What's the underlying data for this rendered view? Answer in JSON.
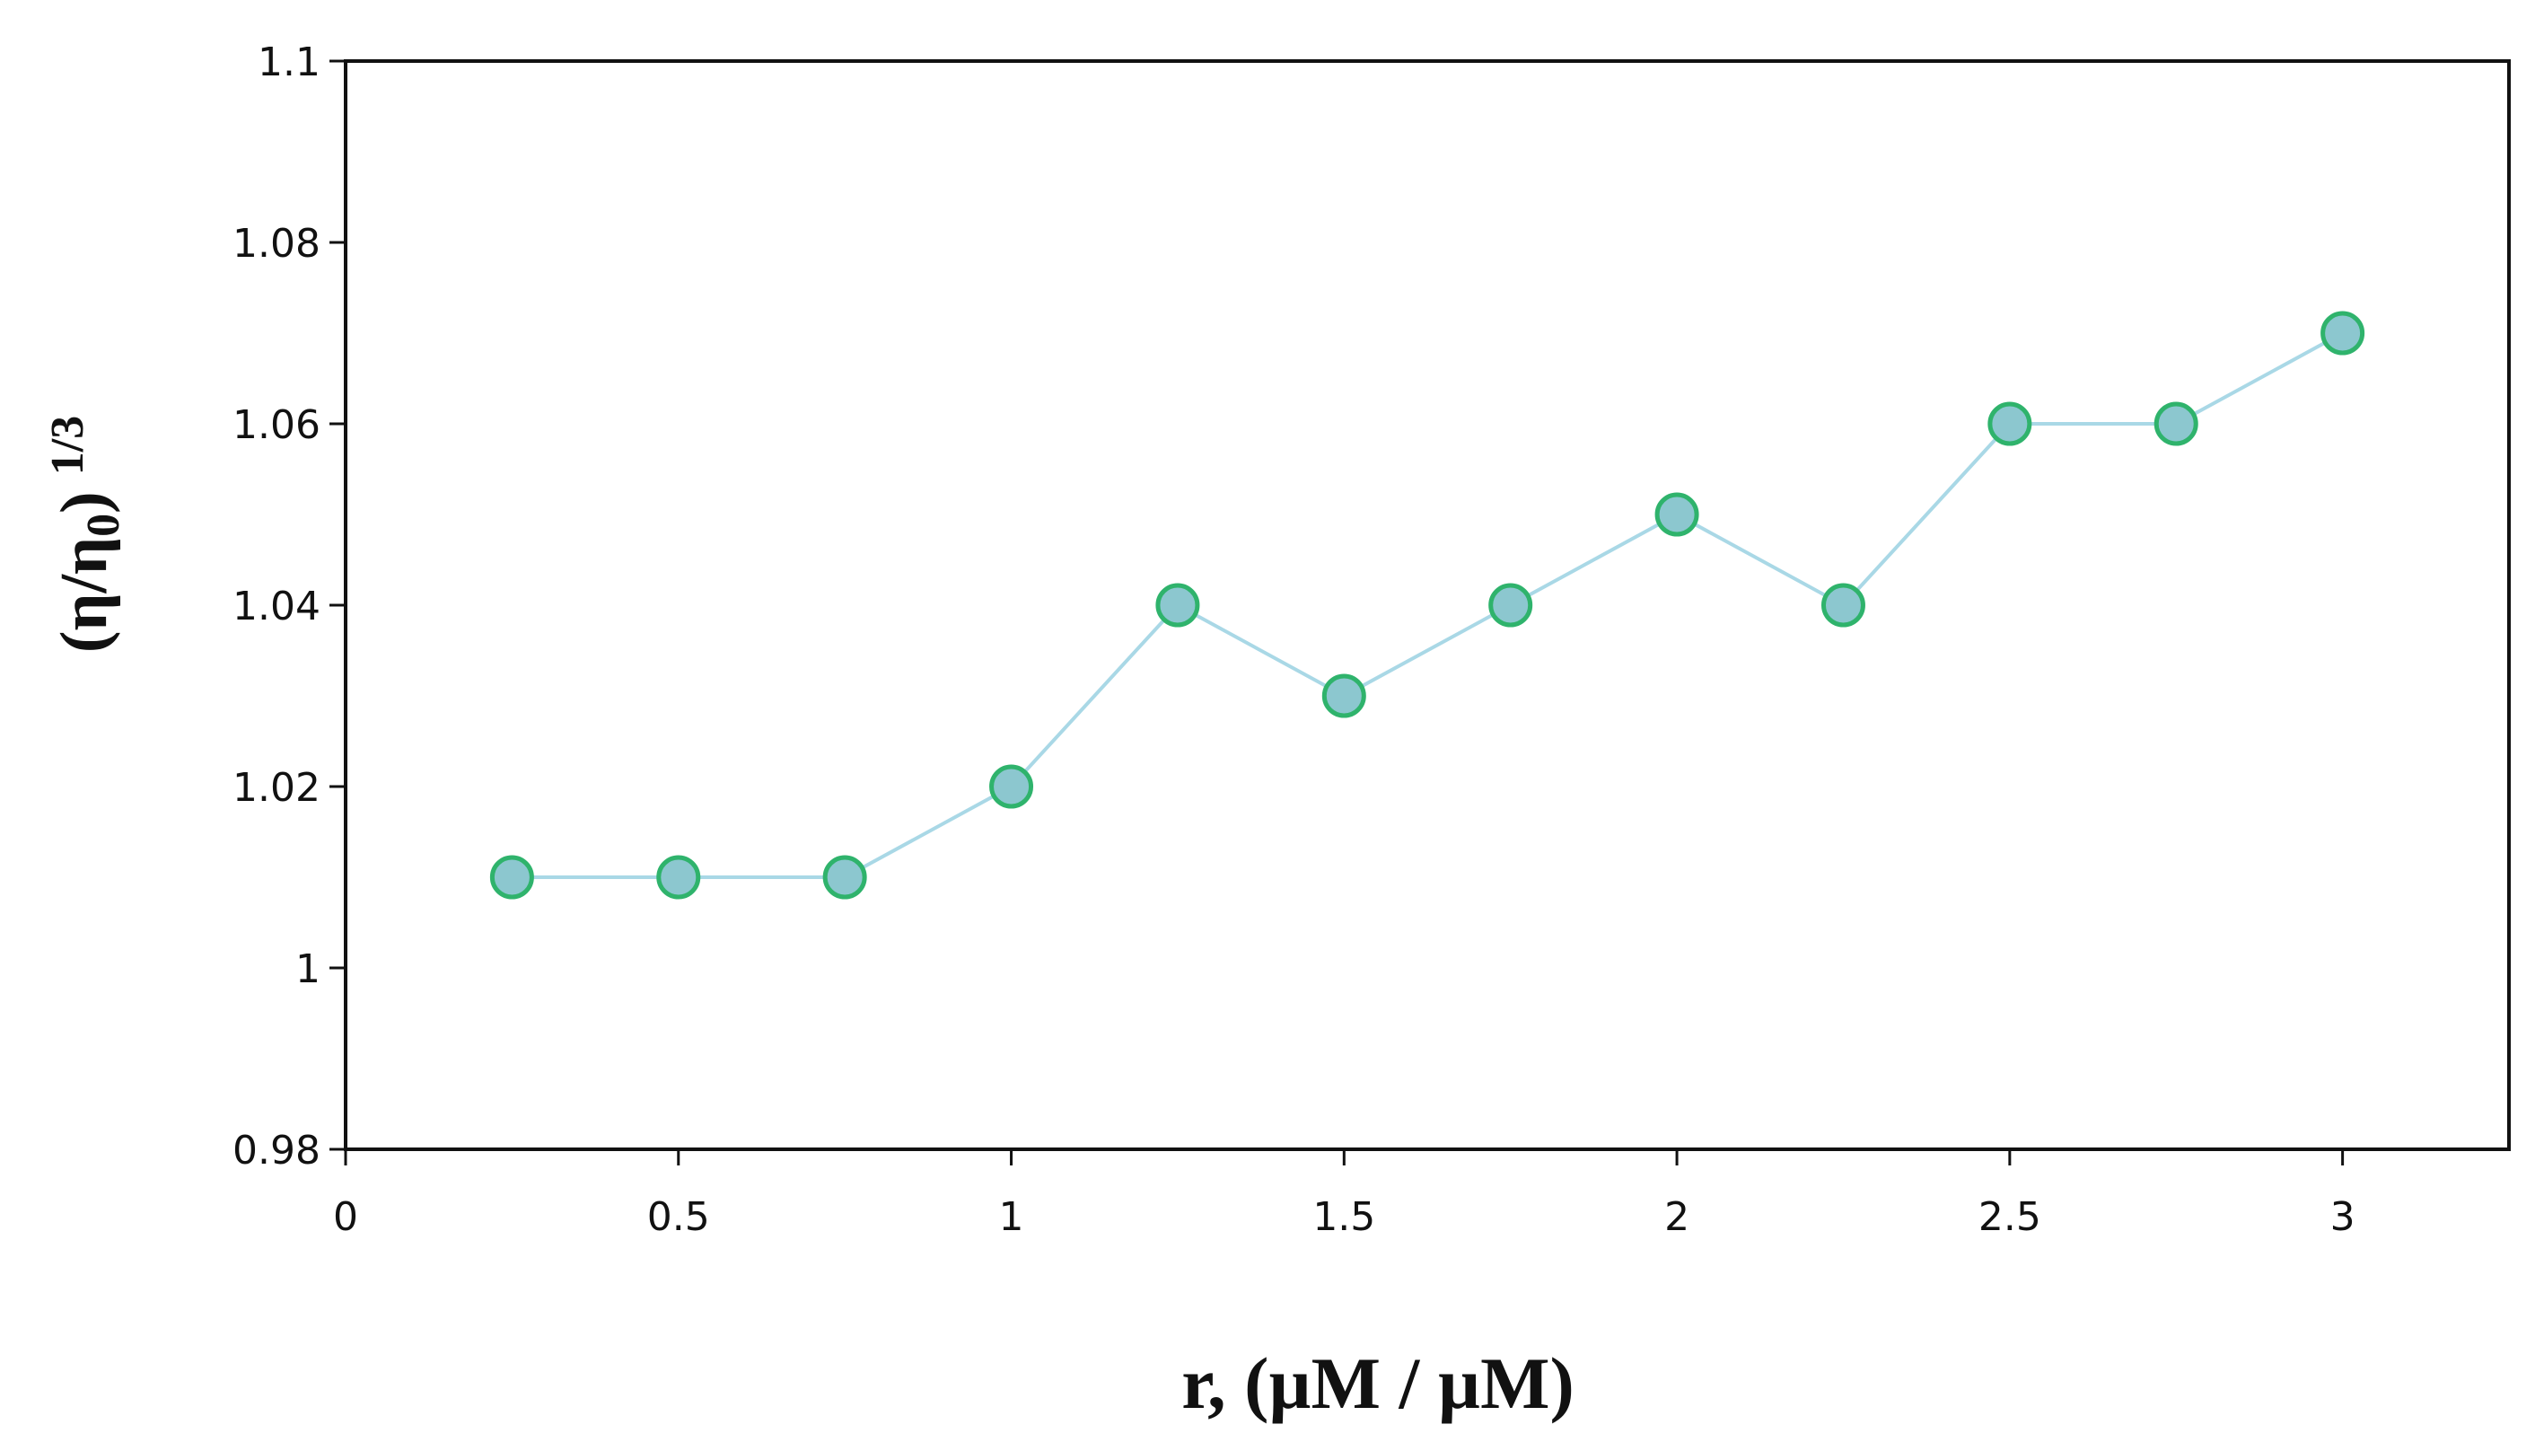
{
  "chart_data": {
    "type": "line",
    "title": "",
    "xlabel": "r,  (µM / µM)",
    "ylabel": {
      "main": "(η/η",
      "subscript": "0",
      "close": ")",
      "superscript": "1/3"
    },
    "xlim": [
      0,
      3.25
    ],
    "ylim": [
      0.98,
      1.1
    ],
    "x_ticks": [
      0,
      0.5,
      1,
      1.5,
      2,
      2.5,
      3
    ],
    "x_tick_labels": [
      "0",
      "0.5",
      "1",
      "1.5",
      "2",
      "2.5",
      "3"
    ],
    "y_ticks": [
      0.98,
      1,
      1.02,
      1.04,
      1.06,
      1.08,
      1.1
    ],
    "y_tick_labels": [
      "0.98",
      "1",
      "1.02",
      "1.04",
      "1.06",
      "1.08",
      "1.1"
    ],
    "grid": false,
    "legend": "none",
    "series": [
      {
        "x": [
          0.25,
          0.5,
          0.75,
          1.0,
          1.25,
          1.5,
          1.75,
          2.0,
          2.25,
          2.5,
          2.75,
          3.0
        ],
        "y": [
          1.01,
          1.01,
          1.01,
          1.02,
          1.04,
          1.03,
          1.04,
          1.05,
          1.04,
          1.06,
          1.06,
          1.07
        ],
        "line_color": "#a9d8e6",
        "marker_fill": "#8cc7cf",
        "marker_edge": "#2fb36c"
      }
    ]
  }
}
